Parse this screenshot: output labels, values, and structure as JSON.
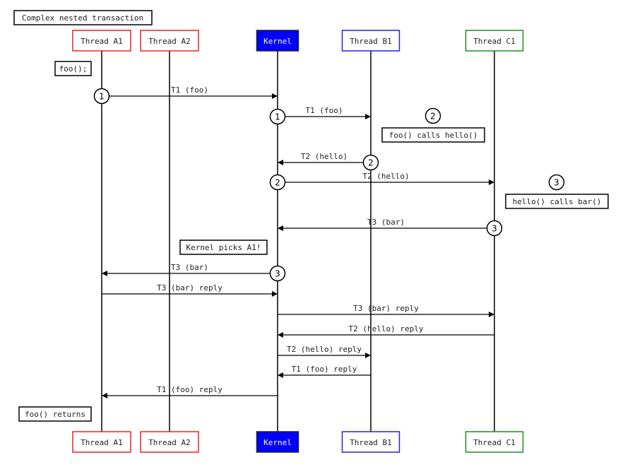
{
  "title": "Complex nested transaction",
  "colors": {
    "thread_a": "#ee2222",
    "thread_b": "#2222ee",
    "thread_c": "#228822",
    "kernel_fill": "#0000ff",
    "kernel_text": "#ffffff",
    "line": "#000000"
  },
  "participants": [
    {
      "id": "A1",
      "label": "Thread A1",
      "color": "#ee2222",
      "filled": false
    },
    {
      "id": "A2",
      "label": "Thread A2",
      "color": "#ee2222",
      "filled": false
    },
    {
      "id": "K",
      "label": "Kernel",
      "color": "#0000ff",
      "filled": true
    },
    {
      "id": "B1",
      "label": "Thread B1",
      "color": "#2222ee",
      "filled": false
    },
    {
      "id": "C1",
      "label": "Thread C1",
      "color": "#228822",
      "filled": false
    }
  ],
  "messages": [
    {
      "from": "A1",
      "to": "K",
      "label": "T1 (foo)",
      "marker": "1"
    },
    {
      "from": "K",
      "to": "B1",
      "label": "T1 (foo)",
      "marker": "1"
    },
    {
      "from": "B1",
      "to": "K",
      "label": "T2 (hello)",
      "marker": "2"
    },
    {
      "from": "K",
      "to": "C1",
      "label": "T2 (hello)",
      "marker": "2"
    },
    {
      "from": "C1",
      "to": "K",
      "label": "T3 (bar)",
      "marker": "3"
    },
    {
      "from": "K",
      "to": "A1",
      "label": "T3 (bar)",
      "marker": "3"
    },
    {
      "from": "A1",
      "to": "K",
      "label": "T3 (bar) reply",
      "marker": ""
    },
    {
      "from": "K",
      "to": "C1",
      "label": "T3 (bar) reply",
      "marker": ""
    },
    {
      "from": "C1",
      "to": "K",
      "label": "T2 (hello) reply",
      "marker": ""
    },
    {
      "from": "K",
      "to": "B1",
      "label": "T2 (hello) reply",
      "marker": ""
    },
    {
      "from": "B1",
      "to": "K",
      "label": "T1 (foo) reply",
      "marker": ""
    },
    {
      "from": "K",
      "to": "A1",
      "label": "T1 (foo) reply",
      "marker": ""
    }
  ],
  "notes": [
    {
      "text": "foo();",
      "marker": ""
    },
    {
      "text": "foo() calls hello()",
      "marker": "2"
    },
    {
      "text": "hello() calls bar()",
      "marker": "3"
    },
    {
      "text": "Kernel picks A1!",
      "marker": ""
    },
    {
      "text": "foo() returns",
      "marker": ""
    }
  ]
}
